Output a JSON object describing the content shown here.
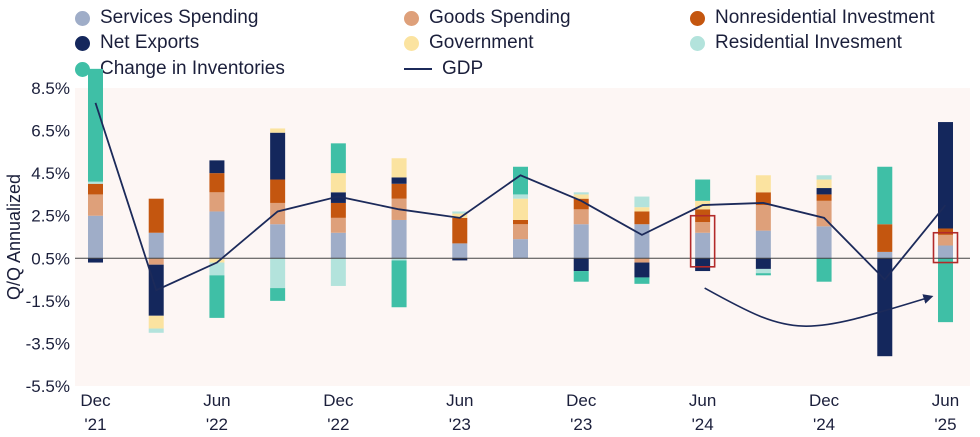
{
  "legend": [
    {
      "label": "Services Spending",
      "color": "#9fadc8",
      "kind": "dot"
    },
    {
      "label": "Goods Spending",
      "color": "#dea07a",
      "kind": "dot"
    },
    {
      "label": "Nonresidential Investment",
      "color": "#c4560f",
      "kind": "dot"
    },
    {
      "label": "Net Exports",
      "color": "#14275c",
      "kind": "dot"
    },
    {
      "label": "Government",
      "color": "#fbe3a0",
      "kind": "dot"
    },
    {
      "label": "Residential Invesment",
      "color": "#b3e3dc",
      "kind": "dot"
    },
    {
      "label": "Change in Inventories",
      "color": "#3fbfa6",
      "kind": "dot"
    },
    {
      "label": "GDP",
      "color": "#1c2a5a",
      "kind": "line"
    }
  ],
  "chart_data": {
    "type": "bar",
    "stacked": true,
    "ylabel": "Q/Q Annualized",
    "ylim": [
      -5.5,
      8.5
    ],
    "yticks": [
      "8.5%",
      "6.5%",
      "4.5%",
      "2.5%",
      "0.5%",
      "-1.5%",
      "-3.5%",
      "-5.5%"
    ],
    "x_tick_labels": [
      {
        "index": 0,
        "top": "Dec",
        "bottom": "'21"
      },
      {
        "index": 2,
        "top": "Jun",
        "bottom": "'22"
      },
      {
        "index": 4,
        "top": "Dec",
        "bottom": "'22"
      },
      {
        "index": 6,
        "top": "Jun",
        "bottom": "'23"
      },
      {
        "index": 8,
        "top": "Dec",
        "bottom": "'23"
      },
      {
        "index": 10,
        "top": "Jun",
        "bottom": "'24"
      },
      {
        "index": 12,
        "top": "Dec",
        "bottom": "'24"
      },
      {
        "index": 14,
        "top": "Jun",
        "bottom": "'25"
      }
    ],
    "categories": [
      "Dec '21",
      "Mar '22",
      "Jun '22",
      "Sep '22",
      "Dec '22",
      "Mar '23",
      "Jun '23",
      "Sep '23",
      "Dec '23",
      "Mar '24",
      "Jun '24",
      "Sep '24",
      "Dec '24",
      "Mar '25",
      "Jun '25"
    ],
    "series": [
      {
        "name": "Services Spending",
        "color": "#9fadc8",
        "values": [
          2.0,
          1.2,
          2.2,
          1.6,
          1.2,
          1.8,
          0.7,
          0.9,
          1.6,
          1.6,
          1.2,
          1.3,
          1.5,
          0.3,
          0.6
        ]
      },
      {
        "name": "Goods Spending",
        "color": "#dea07a",
        "values": [
          1.0,
          -0.3,
          0.9,
          1.0,
          0.7,
          1.0,
          0.0,
          0.7,
          0.7,
          -0.2,
          0.5,
          1.2,
          1.2,
          0.0,
          0.5
        ]
      },
      {
        "name": "Nonresidential Investment",
        "color": "#c4560f",
        "values": [
          0.5,
          1.6,
          0.9,
          1.1,
          0.7,
          0.7,
          1.2,
          0.2,
          0.5,
          0.6,
          0.6,
          0.6,
          0.3,
          1.3,
          0.3
        ]
      },
      {
        "name": "Net Exports",
        "color": "#14275c",
        "values": [
          -0.2,
          -2.4,
          0.6,
          2.2,
          0.5,
          0.3,
          -0.1,
          0.0,
          -0.6,
          -0.7,
          -0.6,
          -0.5,
          0.3,
          -4.6,
          5.0
        ]
      },
      {
        "name": "Government",
        "color": "#fbe3a0",
        "values": [
          0.0,
          -0.6,
          -0.2,
          0.2,
          0.9,
          0.9,
          0.2,
          1.0,
          0.2,
          0.2,
          0.4,
          0.8,
          0.4,
          0.0,
          0.0
        ]
      },
      {
        "name": "Residential Invesment",
        "color": "#b3e3dc",
        "values": [
          0.1,
          -0.2,
          -0.6,
          -1.4,
          -1.3,
          -0.1,
          0.1,
          0.2,
          0.1,
          0.5,
          0.0,
          -0.2,
          0.2,
          0.0,
          0.0
        ]
      },
      {
        "name": "Change in Inventories",
        "color": "#3fbfa6",
        "values": [
          5.3,
          0.0,
          -2.0,
          -0.6,
          1.4,
          -2.2,
          0.0,
          1.3,
          -0.5,
          -0.3,
          1.0,
          -0.1,
          -1.1,
          2.7,
          -3.0
        ]
      }
    ],
    "gdp": {
      "name": "GDP",
      "color": "#1c2a5a",
      "values": [
        7.8,
        -1.0,
        0.3,
        2.7,
        3.4,
        2.8,
        2.4,
        4.4,
        3.2,
        1.6,
        3.0,
        3.1,
        2.4,
        -0.5,
        3.0
      ]
    },
    "highlight_indices": [
      10,
      14
    ]
  }
}
